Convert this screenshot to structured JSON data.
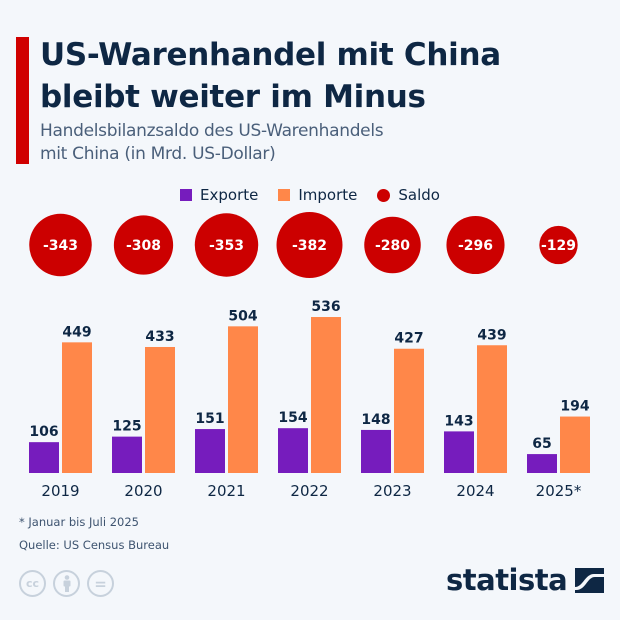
{
  "header": {
    "title_line1": "US-Warenhandel mit China",
    "title_line2": "bleibt weiter im Minus",
    "subtitle_line1": "Handelsbilanzsaldo des US-Warenhandels",
    "subtitle_line2": "mit China (in Mrd. US-Dollar)"
  },
  "legend": {
    "items": [
      {
        "label": "Exporte",
        "color": "#761cbd",
        "shape": "square"
      },
      {
        "label": "Importe",
        "color": "#ff8749",
        "shape": "square"
      },
      {
        "label": "Saldo",
        "color": "#cc0000",
        "shape": "circle"
      }
    ]
  },
  "chart_data": {
    "type": "bar",
    "title": "US-Warenhandel mit China bleibt weiter im Minus",
    "subtitle": "Handelsbilanzsaldo des US-Warenhandels mit China (in Mrd. US-Dollar)",
    "xlabel": "",
    "ylabel": "Mrd. US-Dollar",
    "grid": false,
    "legend_position": "top-center",
    "categories": [
      "2019",
      "2020",
      "2021",
      "2022",
      "2023",
      "2024",
      "2025*"
    ],
    "series": [
      {
        "name": "Exporte",
        "color": "#761cbd",
        "values": [
          106,
          125,
          151,
          154,
          148,
          143,
          65
        ]
      },
      {
        "name": "Importe",
        "color": "#ff8749",
        "values": [
          449,
          433,
          504,
          536,
          427,
          439,
          194
        ]
      },
      {
        "name": "Saldo",
        "color": "#cc0000",
        "type": "bubble",
        "values": [
          -343,
          -308,
          -353,
          -382,
          -280,
          -296,
          -129
        ]
      }
    ],
    "ylim": [
      0,
      560
    ]
  },
  "footer": {
    "note": "* Januar bis Juli 2025",
    "source": "Quelle: US Census Bureau",
    "license_icons": [
      "cc-icon",
      "by-icon",
      "nd-icon"
    ],
    "cc_label": "cc",
    "nd_label": "=",
    "brand": "statista"
  },
  "colors": {
    "accent": "#d00000",
    "text_dark": "#0e2744",
    "background": "#f4f7fb"
  }
}
